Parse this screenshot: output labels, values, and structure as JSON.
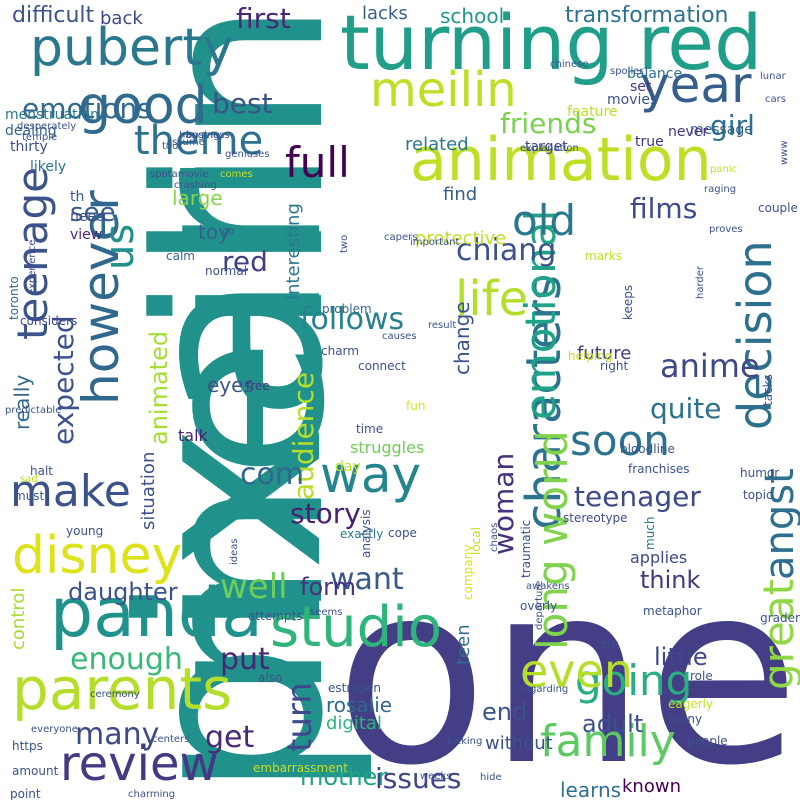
{
  "words": [
    {
      "text": "pixar",
      "color": "#21918c"
    },
    {
      "text": "one",
      "color": "#433e85"
    },
    {
      "text": "meilin",
      "color": "#21918c"
    },
    {
      "text": "turning red",
      "color": "#1f9e89"
    },
    {
      "text": "puberty",
      "color": "#2a788e"
    },
    {
      "text": "animation",
      "color": "#bddf26"
    },
    {
      "text": "panda",
      "color": "#21918c"
    },
    {
      "text": "good",
      "color": "#306a8e"
    },
    {
      "text": "year",
      "color": "#35608d"
    },
    {
      "text": "review",
      "color": "#443983"
    },
    {
      "text": "parents",
      "color": "#b5de2b"
    },
    {
      "text": "going",
      "color": "#28ae80"
    },
    {
      "text": "however",
      "color": "#31688e"
    },
    {
      "text": "family",
      "color": "#5ec962"
    },
    {
      "text": "characters",
      "color": "#2c738e"
    },
    {
      "text": "decision",
      "color": "#2d708e"
    },
    {
      "text": "disney",
      "color": "#dde318"
    },
    {
      "text": "studio",
      "color": "#2fb47c"
    },
    {
      "text": "life",
      "color": "#b5de2b"
    },
    {
      "text": "teenage",
      "color": "#3b528b"
    },
    {
      "text": "way",
      "color": "#25858e"
    },
    {
      "text": "emotional",
      "color": "#1fa287"
    },
    {
      "text": "full",
      "color": "#440154"
    },
    {
      "text": "make",
      "color": "#3b528b"
    },
    {
      "text": "soon",
      "color": "#2c728e"
    },
    {
      "text": "theme",
      "color": "#2c728e"
    },
    {
      "text": "us",
      "color": "#21918c"
    },
    {
      "text": "old",
      "color": "#2a778e"
    },
    {
      "text": "long world",
      "color": "#81d34d"
    },
    {
      "text": "even",
      "color": "#b5de2b"
    },
    {
      "text": "great",
      "color": "#8fd744"
    },
    {
      "text": "angst",
      "color": "#2e6e8e"
    },
    {
      "text": "anime",
      "color": "#3e4989"
    },
    {
      "text": "emotions",
      "color": "#31688e"
    },
    {
      "text": "expected",
      "color": "#3b528b"
    },
    {
      "text": "best",
      "color": "#3b528b"
    },
    {
      "text": "first",
      "color": "#482878"
    },
    {
      "text": "meilin",
      "color": "#bddf26"
    },
    {
      "text": "friends",
      "color": "#7ad151"
    },
    {
      "text": "girl",
      "color": "#2c728e"
    },
    {
      "text": "films",
      "color": "#3e4a89"
    },
    {
      "text": "chiang",
      "color": "#3b528b"
    },
    {
      "text": "follows",
      "color": "#26828e"
    },
    {
      "text": "see",
      "color": "#38598c"
    },
    {
      "text": "red",
      "color": "#433e85"
    },
    {
      "text": "audience",
      "color": "#b5de2b"
    },
    {
      "text": "quite",
      "color": "#2c728e"
    },
    {
      "text": "com",
      "color": "#31688e"
    },
    {
      "text": "story",
      "color": "#482173"
    },
    {
      "text": "teenager",
      "color": "#3e4989"
    },
    {
      "text": "want",
      "color": "#38598c"
    },
    {
      "text": "woman",
      "color": "#46327e"
    },
    {
      "text": "well",
      "color": "#6ece58"
    },
    {
      "text": "enough",
      "color": "#38b977"
    },
    {
      "text": "put",
      "color": "#482677"
    },
    {
      "text": "many",
      "color": "#3e4989"
    },
    {
      "text": "get",
      "color": "#482878"
    },
    {
      "text": "turn",
      "color": "#3e4a89"
    },
    {
      "text": "mother",
      "color": "#20a486"
    },
    {
      "text": "issues",
      "color": "#414487"
    },
    {
      "text": "end",
      "color": "#3b528b"
    },
    {
      "text": "adult",
      "color": "#3b528b"
    },
    {
      "text": "little",
      "color": "#3e4989"
    },
    {
      "text": "think",
      "color": "#453882"
    },
    {
      "text": "daughter",
      "color": "#3b528b"
    },
    {
      "text": "animated",
      "color": "#a8db34"
    },
    {
      "text": "transformation",
      "color": "#2c728e"
    },
    {
      "text": "school",
      "color": "#1f9a8a"
    },
    {
      "text": "difficult",
      "color": "#3b528b"
    },
    {
      "text": "back",
      "color": "#3e4989"
    },
    {
      "text": "lacks",
      "color": "#355f8d"
    },
    {
      "text": "related",
      "color": "#2a788e"
    },
    {
      "text": "change",
      "color": "#3b528b"
    },
    {
      "text": "really",
      "color": "#31688e"
    },
    {
      "text": "eyes",
      "color": "#3b528b"
    },
    {
      "text": "large",
      "color": "#86d549"
    },
    {
      "text": "toy",
      "color": "#355f8d"
    },
    {
      "text": "future",
      "color": "#453882"
    },
    {
      "text": "form",
      "color": "#46337f"
    },
    {
      "text": "rosalie",
      "color": "#31688e"
    },
    {
      "text": "digital",
      "color": "#2fb47c"
    },
    {
      "text": "learns",
      "color": "#2c728e"
    },
    {
      "text": "known",
      "color": "#440154"
    },
    {
      "text": "without",
      "color": "#3b528b"
    },
    {
      "text": "teen",
      "color": "#2d708e"
    },
    {
      "text": "protective",
      "color": "#c2df23"
    },
    {
      "text": "find",
      "color": "#355f8d"
    },
    {
      "text": "interesting",
      "color": "#2a788e"
    },
    {
      "text": "situation",
      "color": "#3b528b"
    },
    {
      "text": "control",
      "color": "#a8db34"
    },
    {
      "text": "applies",
      "color": "#3e4a89"
    },
    {
      "text": "balance",
      "color": "#2c728e"
    },
    {
      "text": "set",
      "color": "#46327e"
    },
    {
      "text": "target",
      "color": "#3e4989"
    },
    {
      "text": "movies",
      "color": "#3b528b"
    },
    {
      "text": "feature",
      "color": "#bddf26"
    },
    {
      "text": "message",
      "color": "#355f8d"
    },
    {
      "text": "never",
      "color": "#46337f"
    },
    {
      "text": "true",
      "color": "#46327e"
    },
    {
      "text": "talk",
      "color": "#482475"
    },
    {
      "text": "struggles",
      "color": "#6ece58"
    },
    {
      "text": "day",
      "color": "#c2df23"
    },
    {
      "text": "menstruation",
      "color": "#2a788e"
    },
    {
      "text": "dealing",
      "color": "#31688e"
    },
    {
      "text": "thirty",
      "color": "#3b528b"
    },
    {
      "text": "likely",
      "color": "#2c728e"
    },
    {
      "text": "th",
      "color": "#3b528b"
    },
    {
      "text": "need",
      "color": "#3b528b"
    },
    {
      "text": "view",
      "color": "#482677"
    },
    {
      "text": "toronto",
      "color": "#31688e"
    },
    {
      "text": "experience",
      "color": "#3e4989"
    },
    {
      "text": "considers",
      "color": "#3e4989"
    },
    {
      "text": "normal",
      "color": "#3b528b"
    },
    {
      "text": "calm",
      "color": "#31688e"
    },
    {
      "text": "problem",
      "color": "#31688e"
    },
    {
      "text": "charm",
      "color": "#3b528b"
    },
    {
      "text": "connect",
      "color": "#3b528b"
    },
    {
      "text": "fun",
      "color": "#dde318"
    },
    {
      "text": "free",
      "color": "#453882"
    },
    {
      "text": "time",
      "color": "#3b528b"
    },
    {
      "text": "must",
      "color": "#3b528b"
    },
    {
      "text": "halt",
      "color": "#3b528b"
    },
    {
      "text": "young",
      "color": "#3b528b"
    },
    {
      "text": "exactly",
      "color": "#2a788e"
    },
    {
      "text": "cope",
      "color": "#3b528b"
    },
    {
      "text": "local",
      "color": "#c2df23"
    },
    {
      "text": "stereotype",
      "color": "#3e4989"
    },
    {
      "text": "analysis",
      "color": "#3b528b"
    },
    {
      "text": "company",
      "color": "#dde318"
    },
    {
      "text": "awakens",
      "color": "#3b528b"
    },
    {
      "text": "ideas",
      "color": "#3b528b"
    },
    {
      "text": "attempts",
      "color": "#3b528b"
    },
    {
      "text": "seems",
      "color": "#3b528b"
    },
    {
      "text": "also",
      "color": "#3b528b"
    },
    {
      "text": "estrogen",
      "color": "#3b528b"
    },
    {
      "text": "ceremony",
      "color": "#3b528b"
    },
    {
      "text": "centers",
      "color": "#3b528b"
    },
    {
      "text": "everyone",
      "color": "#3b528b"
    },
    {
      "text": "https",
      "color": "#3b528b"
    },
    {
      "text": "amount",
      "color": "#3b528b"
    },
    {
      "text": "point",
      "color": "#3b528b"
    },
    {
      "text": "embarrassment",
      "color": "#c2df23"
    },
    {
      "text": "charming",
      "color": "#3b528b"
    },
    {
      "text": "weeks",
      "color": "#3b528b"
    },
    {
      "text": "hide",
      "color": "#3b528b"
    },
    {
      "text": "kicking",
      "color": "#3b528b"
    },
    {
      "text": "regarding",
      "color": "#3b528b"
    },
    {
      "text": "departure",
      "color": "#3b528b"
    },
    {
      "text": "people",
      "color": "#3b528b"
    },
    {
      "text": "funny",
      "color": "#3b528b"
    },
    {
      "text": "eagerly",
      "color": "#c2df23"
    },
    {
      "text": "role",
      "color": "#3b528b"
    },
    {
      "text": "em",
      "color": "#3b528b"
    },
    {
      "text": "grader",
      "color": "#3b528b"
    },
    {
      "text": "overly",
      "color": "#3b528b"
    },
    {
      "text": "traumatic",
      "color": "#3b528b"
    },
    {
      "text": "metaphor",
      "color": "#3b528b"
    },
    {
      "text": "topic",
      "color": "#3b528b"
    },
    {
      "text": "humor",
      "color": "#3b528b"
    },
    {
      "text": "much",
      "color": "#2c728e"
    },
    {
      "text": "right",
      "color": "#3b528b"
    },
    {
      "text": "helping",
      "color": "#c2df23"
    },
    {
      "text": "bloodline",
      "color": "#3b528b"
    },
    {
      "text": "franchises",
      "color": "#3b528b"
    },
    {
      "text": "tacks",
      "color": "#3b528b"
    },
    {
      "text": "predictable",
      "color": "#3b528b"
    },
    {
      "text": "sad",
      "color": "#c2df23"
    },
    {
      "text": "chaos",
      "color": "#3b528b"
    },
    {
      "text": "desperately",
      "color": "#3b528b"
    },
    {
      "text": "temple",
      "color": "#3b528b"
    },
    {
      "text": "hanging",
      "color": "#3b528b"
    },
    {
      "text": "business",
      "color": "#3b528b"
    },
    {
      "text": "tour",
      "color": "#3b528b"
    },
    {
      "text": "assume",
      "color": "#3b528b"
    },
    {
      "text": "geniuses",
      "color": "#3b528b"
    },
    {
      "text": "comes",
      "color": "#c2df23"
    },
    {
      "text": "spotamovie",
      "color": "#3b528b"
    },
    {
      "text": "crashing",
      "color": "#3b528b"
    },
    {
      "text": "go",
      "color": "#3b528b"
    },
    {
      "text": "two",
      "color": "#3b528b"
    },
    {
      "text": "capers",
      "color": "#3b528b"
    },
    {
      "text": "important",
      "color": "#3b528b"
    },
    {
      "text": "result",
      "color": "#3b528b"
    },
    {
      "text": "causes",
      "color": "#3b528b"
    },
    {
      "text": "keeps",
      "color": "#3b528b"
    },
    {
      "text": "harder",
      "color": "#3b528b"
    },
    {
      "text": "marks",
      "color": "#c2df23"
    },
    {
      "text": "couple",
      "color": "#3b528b"
    },
    {
      "text": "proves",
      "color": "#3b528b"
    },
    {
      "text": "raging",
      "color": "#3b528b"
    },
    {
      "text": "panic",
      "color": "#c2df23"
    },
    {
      "text": "www",
      "color": "#3b528b"
    },
    {
      "text": "explanation",
      "color": "#3b528b"
    },
    {
      "text": "chinese",
      "color": "#3b528b"
    },
    {
      "text": "spoiler",
      "color": "#3b528b"
    },
    {
      "text": "lunar",
      "color": "#3b528b"
    },
    {
      "text": "cars",
      "color": "#3b528b"
    }
  ]
}
